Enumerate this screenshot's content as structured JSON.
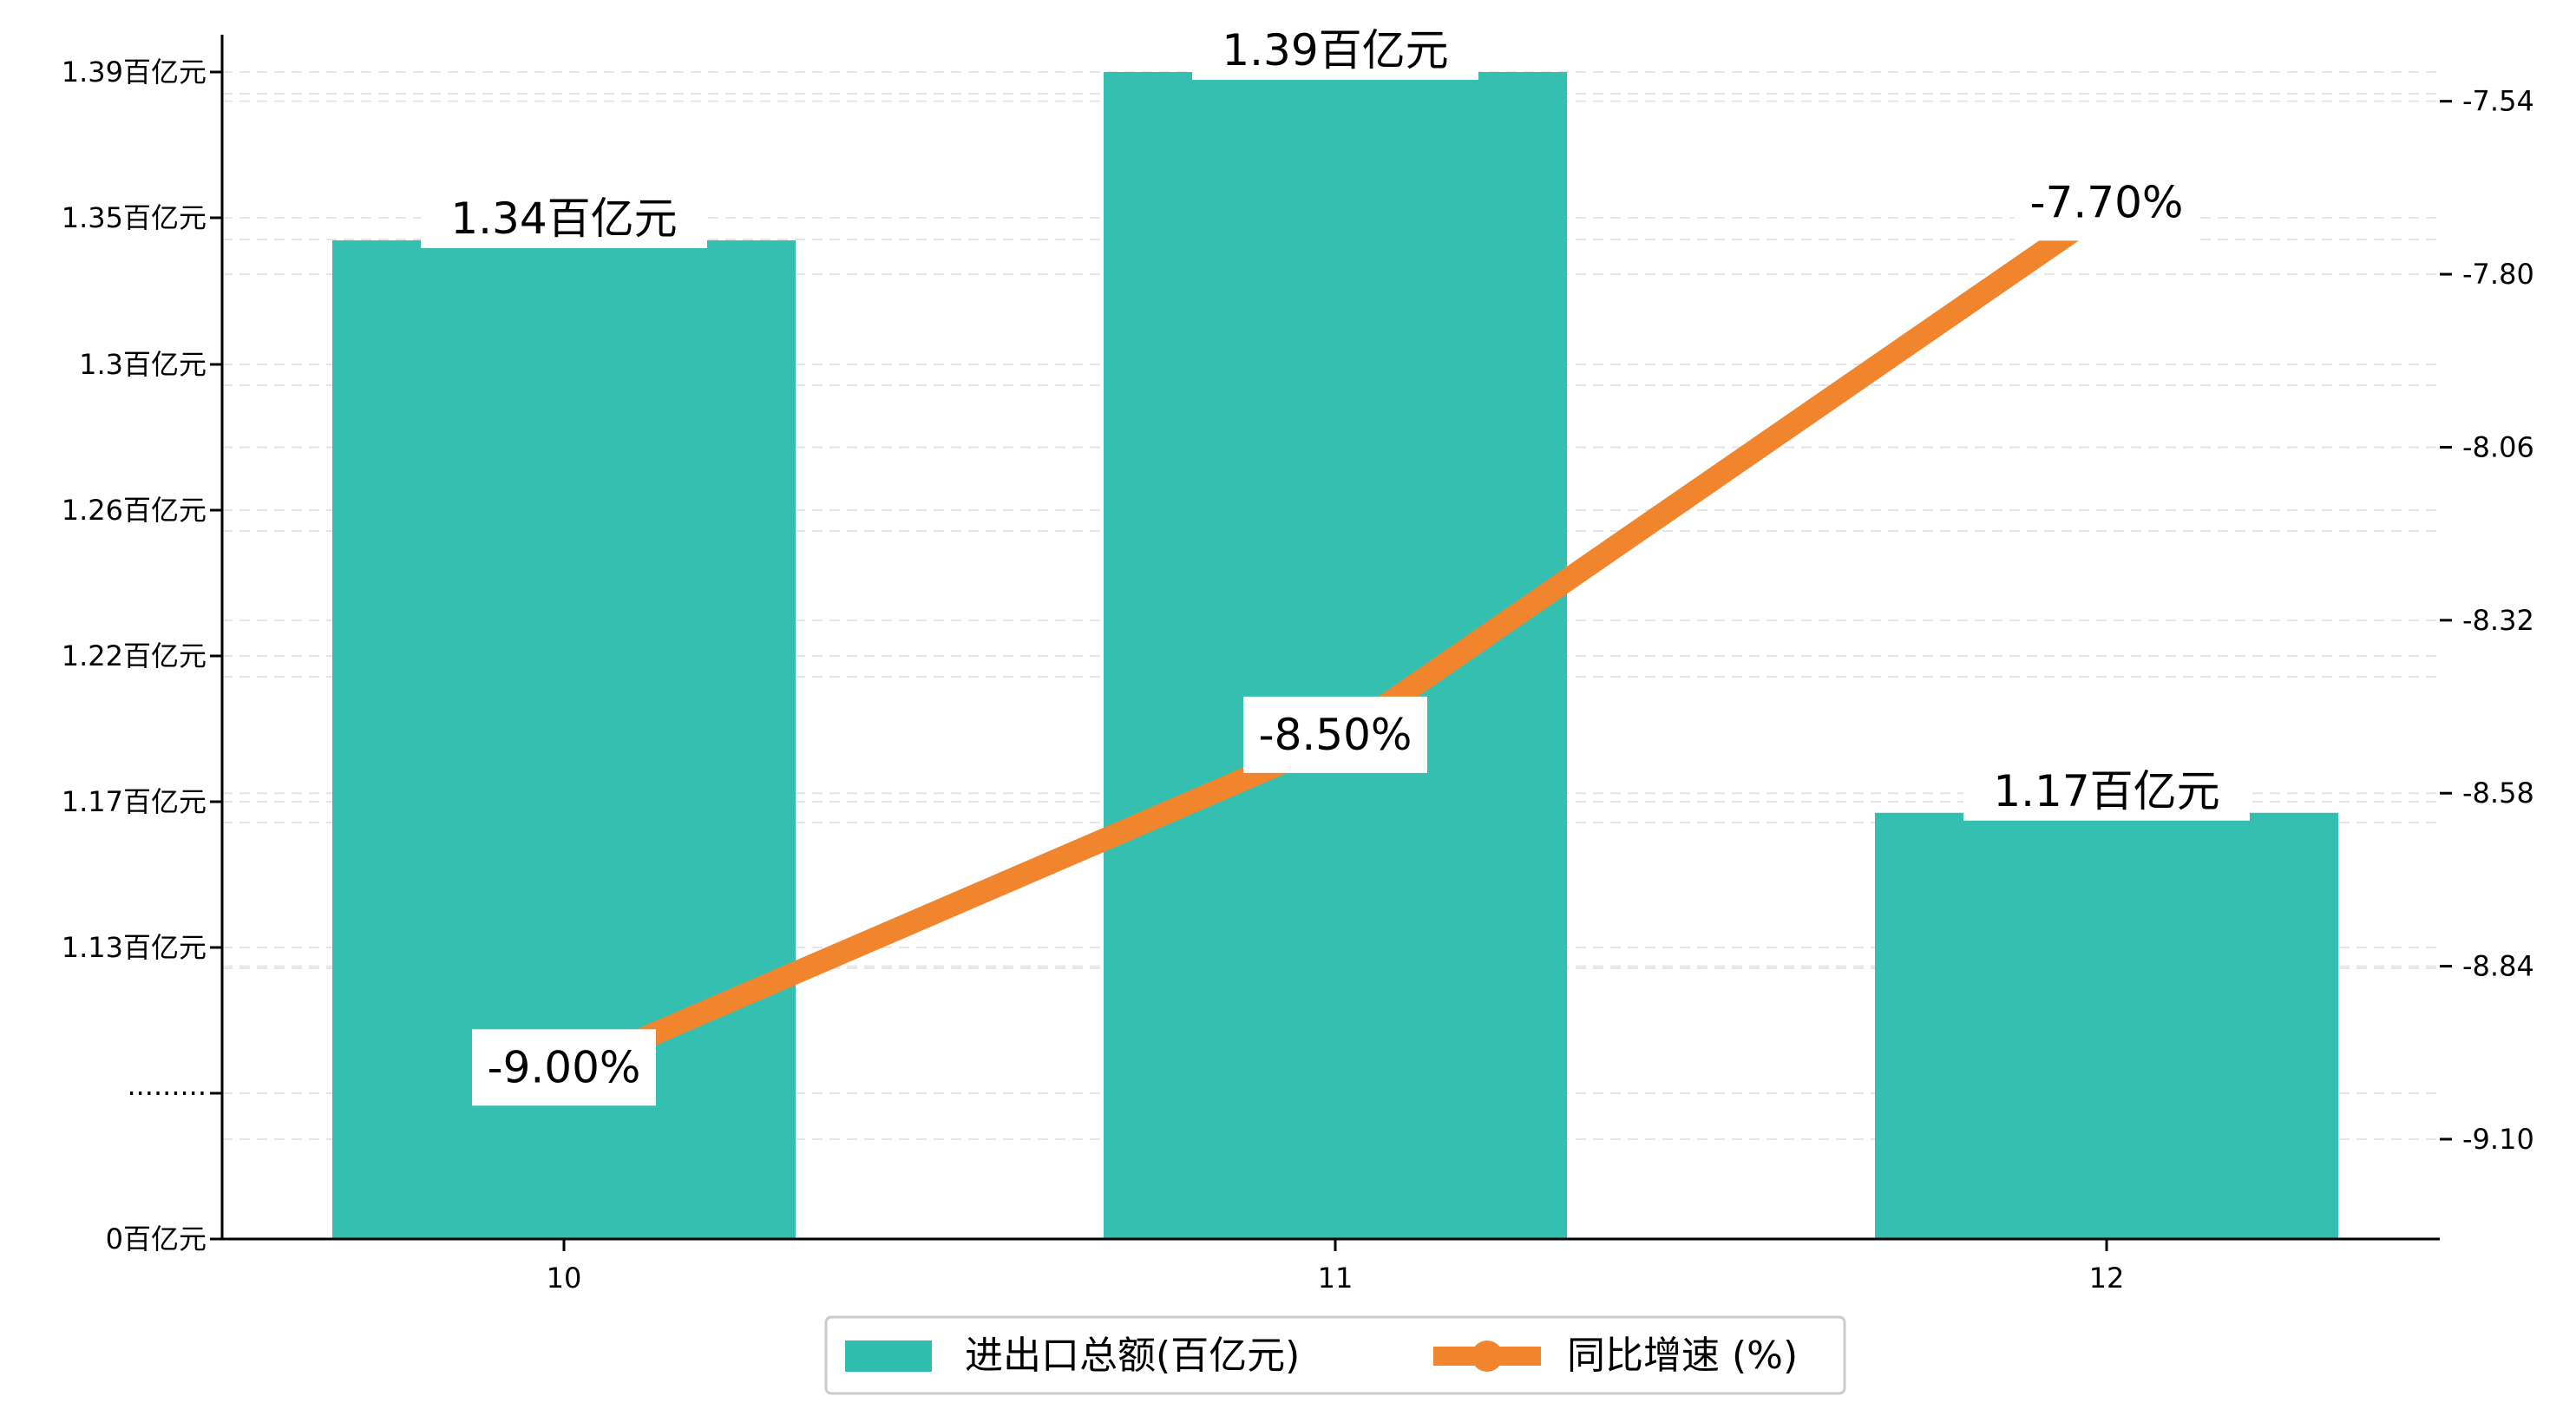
{
  "chart_data": {
    "type": "bar",
    "categories": [
      "10",
      "11",
      "12"
    ],
    "series": [
      {
        "name": "进出口总额(百亿元)",
        "type": "bar",
        "axis": "left",
        "values": [
          1.34,
          1.39,
          1.17
        ],
        "labels": [
          "1.34百亿元",
          "1.39百亿元",
          "1.17百亿元"
        ],
        "color": "#2ebdae"
      },
      {
        "name": "同比增速 (%)",
        "type": "line",
        "axis": "right",
        "values": [
          -9.0,
          -8.5,
          -7.7
        ],
        "labels": [
          "-9.00%",
          "-8.50%",
          "-7.70%"
        ],
        "color": "#f0852d"
      }
    ],
    "left_axis": {
      "scale": "broken",
      "tick_labels": [
        "0百亿元",
        "·········",
        "1.13百亿元",
        "1.17百亿元",
        "1.22百亿元",
        "1.26百亿元",
        "1.3百亿元",
        "1.35百亿元",
        "1.39百亿元"
      ]
    },
    "right_axis": {
      "ylim": [
        -9.25,
        -7.44
      ],
      "ticks": [
        -9.1,
        -8.84,
        -8.58,
        -8.32,
        -8.06,
        -7.8,
        -7.54
      ],
      "tick_labels": [
        "-9.10",
        "-8.84",
        "-8.58",
        "-8.32",
        "-8.06",
        "-7.80",
        "-7.54"
      ]
    },
    "grid": "horizontal dashed",
    "legend_position": "bottom-center"
  }
}
